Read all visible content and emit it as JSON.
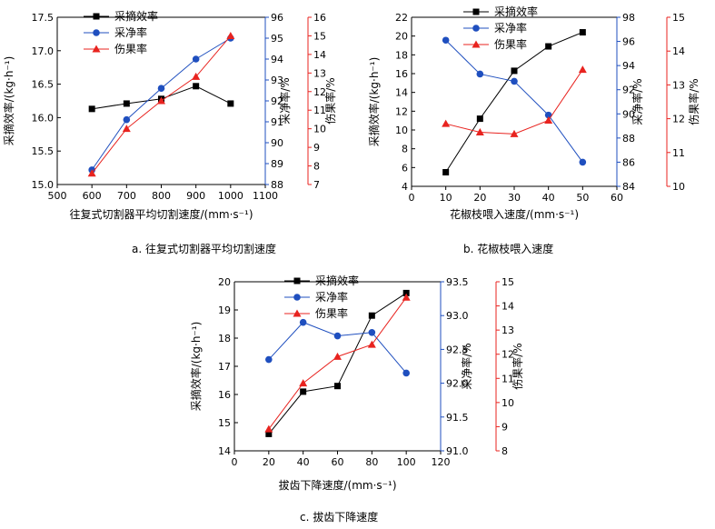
{
  "colors": {
    "efficiency": "#000000",
    "clean": "#1f4fbf",
    "damage": "#e8231f"
  },
  "chart_data": [
    {
      "type": "line",
      "caption": "a.  往复式切割器平均切割速度",
      "xlabel": "往复式切割器平均切割速度/(mm·s⁻¹)",
      "xlim": [
        500,
        1100
      ],
      "x_ticks": [
        500,
        600,
        700,
        800,
        900,
        1000,
        1100
      ],
      "x": [
        600,
        700,
        800,
        900,
        1000
      ],
      "legend": [
        "采摘效率",
        "采净率",
        "伤果率"
      ],
      "legend_position": "top-left",
      "axes": {
        "y1": {
          "label": "采摘效率/(kg·h⁻¹)",
          "lim": [
            15.0,
            17.5
          ],
          "ticks": [
            "15.0",
            "15.5",
            "16.0",
            "16.5",
            "17.0",
            "17.5"
          ]
        },
        "y2": {
          "label": "采净率/%",
          "lim": [
            88,
            96
          ],
          "ticks": [
            "88",
            "89",
            "90",
            "91",
            "92",
            "93",
            "94",
            "95",
            "96"
          ]
        },
        "y3": {
          "label": "伤果率/%",
          "lim": [
            7,
            16
          ],
          "ticks": [
            "7",
            "8",
            "9",
            "10",
            "11",
            "12",
            "13",
            "14",
            "15",
            "16"
          ]
        }
      },
      "series": [
        {
          "name": "采摘效率",
          "axis": "y1",
          "values": [
            16.13,
            16.21,
            16.28,
            16.47,
            16.21
          ]
        },
        {
          "name": "采净率",
          "axis": "y2",
          "values": [
            88.7,
            91.1,
            92.6,
            94.0,
            95.0
          ]
        },
        {
          "name": "伤果率",
          "axis": "y3",
          "values": [
            7.6,
            10.0,
            11.5,
            12.8,
            15.0
          ]
        }
      ]
    },
    {
      "type": "line",
      "caption": "b.  花椒枝喂入速度",
      "xlabel": "花椒枝喂入速度/(mm·s⁻¹)",
      "xlim": [
        0,
        60
      ],
      "x_ticks": [
        0,
        10,
        20,
        30,
        40,
        50,
        60
      ],
      "x": [
        10,
        20,
        30,
        40,
        50
      ],
      "legend": [
        "采摘效率",
        "采净率",
        "伤果率"
      ],
      "legend_position": "top-left",
      "axes": {
        "y1": {
          "label": "采摘效率/(kg·h⁻¹)",
          "lim": [
            4,
            22
          ],
          "ticks": [
            "4",
            "6",
            "8",
            "10",
            "12",
            "14",
            "16",
            "18",
            "20",
            "22"
          ]
        },
        "y2": {
          "label": "采净率/%",
          "lim": [
            84,
            98
          ],
          "ticks": [
            "84",
            "86",
            "88",
            "90",
            "92",
            "94",
            "96",
            "98"
          ]
        },
        "y3": {
          "label": "伤果率/%",
          "lim": [
            10,
            15
          ],
          "ticks": [
            "10",
            "11",
            "12",
            "13",
            "14",
            "15"
          ]
        }
      },
      "series": [
        {
          "name": "采摘效率",
          "axis": "y1",
          "values": [
            5.5,
            11.2,
            16.3,
            18.9,
            20.4
          ]
        },
        {
          "name": "采净率",
          "axis": "y2",
          "values": [
            96.1,
            93.3,
            92.7,
            89.9,
            86.0
          ]
        },
        {
          "name": "伤果率",
          "axis": "y3",
          "values": [
            11.85,
            11.6,
            11.55,
            11.95,
            13.45
          ]
        }
      ]
    },
    {
      "type": "line",
      "caption": "c.  拔齿下降速度",
      "xlabel": "拔齿下降速度/(mm·s⁻¹)",
      "xlim": [
        0,
        120
      ],
      "x_ticks": [
        0,
        20,
        40,
        60,
        80,
        100,
        120
      ],
      "x": [
        20,
        40,
        60,
        80,
        100
      ],
      "legend": [
        "采摘效率",
        "采净率",
        "伤果率"
      ],
      "legend_position": "top-left",
      "axes": {
        "y1": {
          "label": "采摘效率/(kg·h⁻¹)",
          "lim": [
            14,
            20
          ],
          "ticks": [
            "14",
            "15",
            "16",
            "17",
            "18",
            "19",
            "20"
          ]
        },
        "y2": {
          "label": "采净率/%",
          "lim": [
            91.0,
            93.5
          ],
          "ticks": [
            "91.0",
            "91.5",
            "92.0",
            "92.5",
            "93.0",
            "93.5"
          ]
        },
        "y3": {
          "label": "伤果率/%",
          "lim": [
            8,
            15
          ],
          "ticks": [
            "8",
            "9",
            "10",
            "11",
            "12",
            "13",
            "14",
            "15"
          ]
        }
      },
      "series": [
        {
          "name": "采摘效率",
          "axis": "y1",
          "values": [
            14.6,
            16.1,
            16.3,
            18.8,
            19.6
          ]
        },
        {
          "name": "采净率",
          "axis": "y2",
          "values": [
            92.35,
            92.9,
            92.7,
            92.75,
            92.15
          ]
        },
        {
          "name": "伤果率",
          "axis": "y3",
          "values": [
            8.9,
            10.8,
            11.9,
            12.4,
            14.35
          ]
        }
      ]
    }
  ]
}
